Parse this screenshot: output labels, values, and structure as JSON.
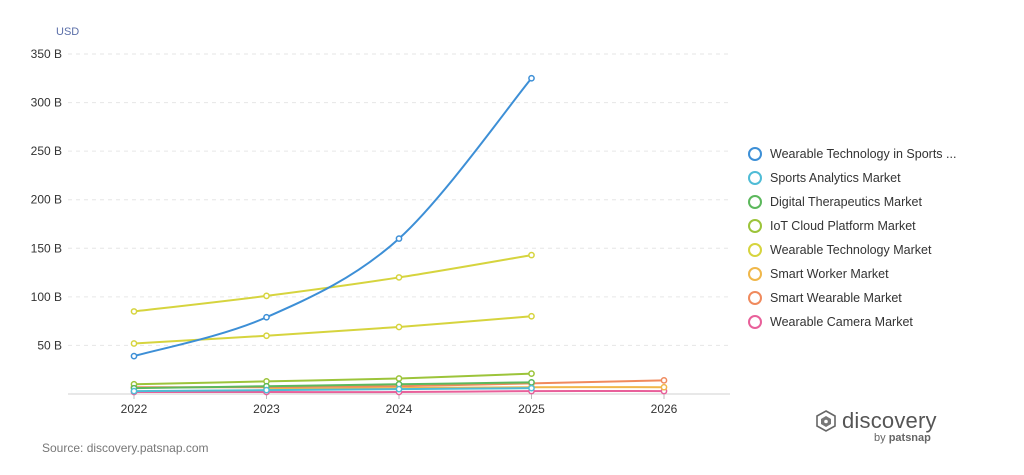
{
  "chart_data": {
    "type": "line",
    "y_unit_label": "USD",
    "x": [
      "2022",
      "2023",
      "2024",
      "2025",
      "2026"
    ],
    "y_ticks": [
      50,
      100,
      150,
      200,
      250,
      300,
      350
    ],
    "y_tick_labels": [
      "50 B",
      "100 B",
      "150 B",
      "200 B",
      "250 B",
      "300 B",
      "350 B"
    ],
    "ylim": [
      0,
      350
    ],
    "grid": true,
    "legend_position": "right",
    "series": [
      {
        "name": "Wearable Technology in Sports ...",
        "color": "#3d8fd6",
        "smooth": true,
        "values": [
          39,
          79,
          160,
          325,
          null
        ]
      },
      {
        "name": "Sports Analytics Market",
        "color": "#4fbcd6",
        "values": [
          3,
          4,
          5,
          6,
          null
        ]
      },
      {
        "name": "Digital Therapeutics Market",
        "color": "#5cb85c",
        "values": [
          6,
          8,
          10,
          12,
          null
        ]
      },
      {
        "name": "IoT Cloud Platform Market",
        "color": "#9cc43a",
        "values": [
          10,
          13,
          16,
          21,
          null
        ]
      },
      {
        "name": "Wearable Technology Market",
        "color": "#d6d43e",
        "values": [
          85,
          101,
          120,
          143,
          null
        ]
      },
      {
        "name": "Wearable Technology Market",
        "color": "#d6d43e",
        "values": [
          52,
          60,
          69,
          80,
          null
        ]
      },
      {
        "name": "Smart Worker Market",
        "color": "#f0b74a",
        "values": [
          null,
          5,
          6,
          7,
          7
        ]
      },
      {
        "name": "Smart Wearable Market",
        "color": "#f08a5d",
        "values": [
          7,
          7,
          8,
          11,
          14
        ]
      },
      {
        "name": "Wearable Camera Market",
        "color": "#e8609a",
        "values": [
          2,
          2,
          2,
          3,
          3
        ]
      }
    ],
    "legend": [
      {
        "label": "Wearable Technology in Sports ...",
        "color": "#3d8fd6"
      },
      {
        "label": "Sports Analytics Market",
        "color": "#4fbcd6"
      },
      {
        "label": "Digital Therapeutics Market",
        "color": "#5cb85c"
      },
      {
        "label": "IoT Cloud Platform Market",
        "color": "#9cc43a"
      },
      {
        "label": "Wearable Technology Market",
        "color": "#d6d43e"
      },
      {
        "label": "Smart Worker Market",
        "color": "#f0b74a"
      },
      {
        "label": "Smart Wearable Market",
        "color": "#f08a5d"
      },
      {
        "label": "Wearable Camera Market",
        "color": "#e8609a"
      }
    ]
  },
  "footer": {
    "source": "Source: discovery.patsnap.com",
    "brand_name": "discovery",
    "brand_by": "by",
    "brand_company": "patsnap",
    "brand_icon": "discovery-logo-icon"
  }
}
